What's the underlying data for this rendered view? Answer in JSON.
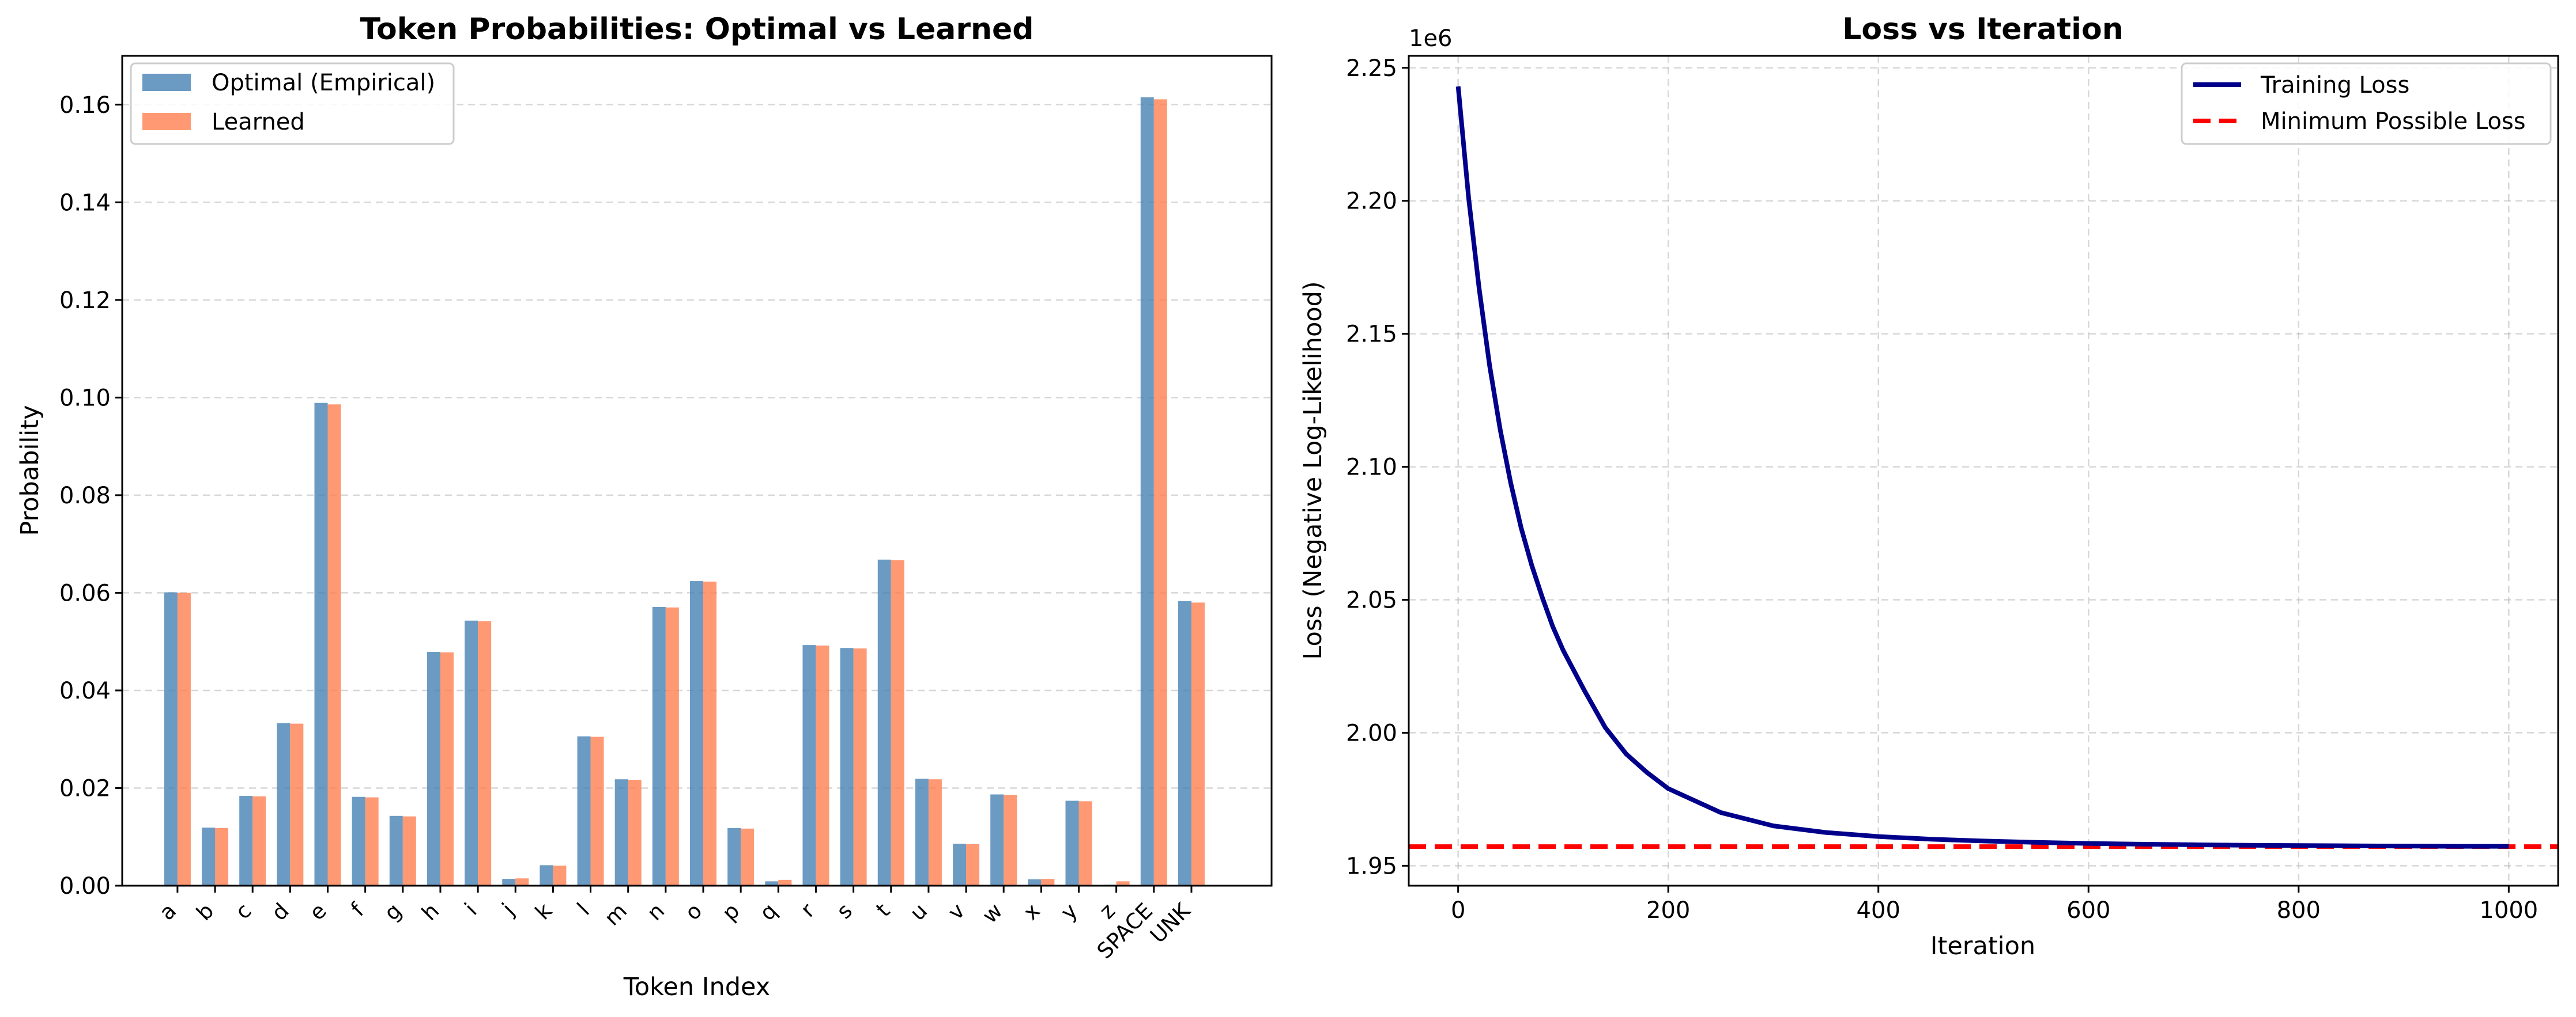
{
  "chart_data": [
    {
      "type": "bar",
      "title": "Token Probabilities: Optimal vs Learned",
      "xlabel": "Token Index",
      "ylabel": "Probability",
      "ylim": [
        0,
        0.17
      ],
      "yticks": [
        0.0,
        0.02,
        0.04,
        0.06,
        0.08,
        0.1,
        0.12,
        0.14,
        0.16
      ],
      "ytick_labels": [
        "0.00",
        "0.02",
        "0.04",
        "0.06",
        "0.08",
        "0.10",
        "0.12",
        "0.14",
        "0.16"
      ],
      "grid": true,
      "legend_position": "top-left",
      "categories": [
        "a",
        "b",
        "c",
        "d",
        "e",
        "f",
        "g",
        "h",
        "i",
        "j",
        "k",
        "l",
        "m",
        "n",
        "o",
        "p",
        "q",
        "r",
        "s",
        "t",
        "u",
        "v",
        "w",
        "x",
        "y",
        "z",
        "SPACE",
        "UNK"
      ],
      "series": [
        {
          "name": "Optimal (Empirical)",
          "color": "#4682b4",
          "values": [
            0.0601,
            0.0119,
            0.0184,
            0.0333,
            0.0989,
            0.0182,
            0.0143,
            0.0479,
            0.0543,
            0.0014,
            0.0042,
            0.0306,
            0.0218,
            0.0571,
            0.0624,
            0.0118,
            0.0009,
            0.0493,
            0.0487,
            0.0668,
            0.0219,
            0.0086,
            0.0187,
            0.0013,
            0.0174,
            0.0002,
            0.1615,
            0.0583
          ]
        },
        {
          "name": "Learned",
          "color": "#ff7f50",
          "values": [
            0.06,
            0.0118,
            0.0183,
            0.0332,
            0.0986,
            0.0181,
            0.0142,
            0.0478,
            0.0542,
            0.0015,
            0.0041,
            0.0305,
            0.0217,
            0.057,
            0.0623,
            0.0117,
            0.0012,
            0.0492,
            0.0486,
            0.0667,
            0.0218,
            0.0085,
            0.0186,
            0.0014,
            0.0173,
            0.0009,
            0.1611,
            0.058
          ]
        }
      ]
    },
    {
      "type": "line",
      "title": "Loss vs Iteration",
      "xlabel": "Iteration",
      "ylabel": "Loss (Negative Log-Likelihood)",
      "offset_label": "1e6",
      "xlim": [
        -47,
        1047
      ],
      "ylim": [
        1.9425,
        2.2545
      ],
      "xticks": [
        0,
        200,
        400,
        600,
        800,
        1000
      ],
      "xtick_labels": [
        "0",
        "200",
        "400",
        "600",
        "800",
        "1000"
      ],
      "yticks": [
        1.95,
        2.0,
        2.05,
        2.1,
        2.15,
        2.2,
        2.25
      ],
      "ytick_labels": [
        "1.95",
        "2.00",
        "2.05",
        "2.10",
        "2.15",
        "2.20",
        "2.25"
      ],
      "grid": true,
      "legend_position": "top-right",
      "series": [
        {
          "name": "Training Loss",
          "color": "#00008b",
          "style": "solid",
          "x": [
            0,
            10,
            20,
            30,
            40,
            50,
            60,
            70,
            80,
            90,
            100,
            120,
            140,
            160,
            180,
            200,
            250,
            300,
            350,
            400,
            450,
            500,
            550,
            600,
            650,
            700,
            750,
            800,
            850,
            900,
            950,
            1000
          ],
          "y": [
            2.243,
            2.201,
            2.167,
            2.138,
            2.114,
            2.094,
            2.077,
            2.063,
            2.051,
            2.04,
            2.031,
            2.016,
            2.002,
            1.992,
            1.985,
            1.979,
            1.97,
            1.965,
            1.9625,
            1.961,
            1.96,
            1.9593,
            1.9588,
            1.9584,
            1.9581,
            1.9579,
            1.9577,
            1.9576,
            1.9575,
            1.9574,
            1.9573,
            1.9573
          ]
        },
        {
          "name": "Minimum Possible Loss",
          "color": "#ff0000",
          "style": "dashed",
          "y_constant": 1.9572
        }
      ]
    }
  ]
}
